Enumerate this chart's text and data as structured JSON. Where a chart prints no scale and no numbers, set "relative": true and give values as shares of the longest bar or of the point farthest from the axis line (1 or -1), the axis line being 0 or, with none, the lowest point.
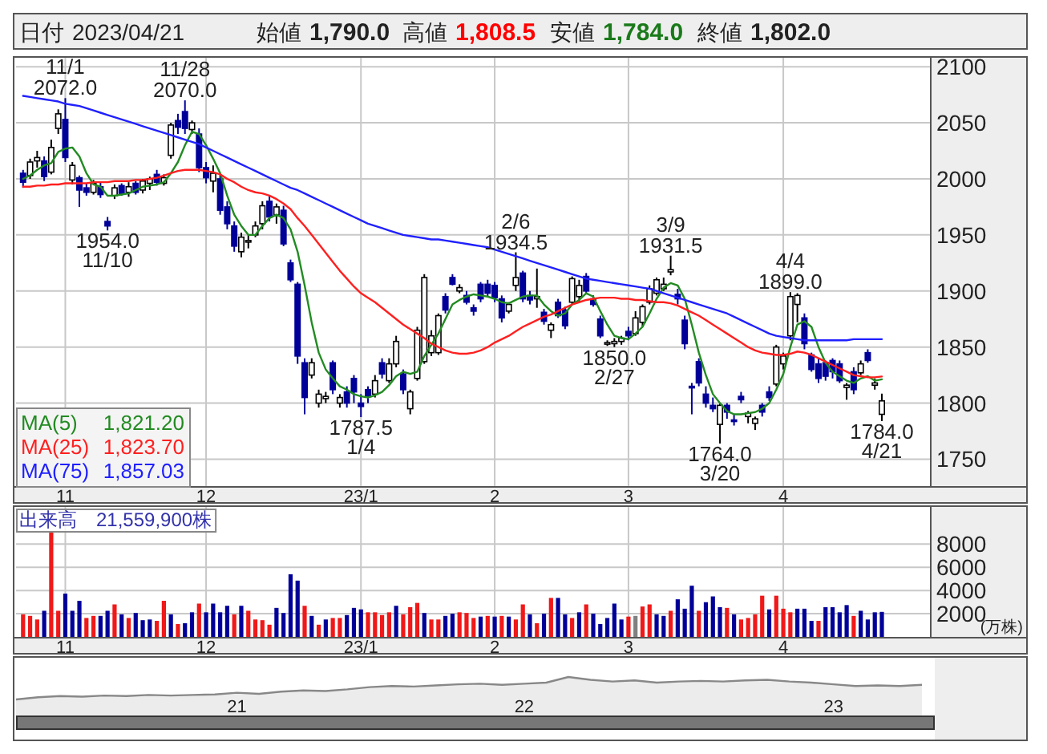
{
  "chart_data": [
    {
      "type": "other",
      "annotations": [
        "日付",
        "2023/04/21",
        "始値",
        "1,790.0",
        "高値",
        "1,808.5",
        "安値",
        "1,784.0",
        "終値",
        "1,802.0"
      ]
    },
    {
      "type": "candlestick",
      "legend": "bottom left",
      "grid": true,
      "ylim": [
        1726,
        2108
      ],
      "yticks": [
        1750,
        1800,
        1850,
        1900,
        1950,
        2000,
        2050,
        2100
      ],
      "categories": [
        null,
        null,
        null,
        null,
        null,
        null,
        "11",
        null,
        null,
        null,
        null,
        null,
        null,
        null,
        null,
        null,
        null,
        null,
        null,
        null,
        null,
        null,
        null,
        null,
        null,
        null,
        "12",
        null,
        null,
        null,
        null,
        null,
        null,
        null,
        null,
        null,
        null,
        null,
        null,
        null,
        null,
        null,
        null,
        null,
        null,
        null,
        null,
        null,
        "23/1",
        null,
        null,
        null,
        null,
        null,
        null,
        null,
        null,
        null,
        null,
        null,
        null,
        null,
        null,
        null,
        null,
        null,
        null,
        "2",
        null,
        null,
        null,
        null,
        null,
        null,
        null,
        null,
        null,
        null,
        null,
        null,
        null,
        null,
        null,
        null,
        null,
        null,
        "3",
        null,
        null,
        null,
        null,
        null,
        null,
        null,
        null,
        null,
        null,
        null,
        null,
        null,
        null,
        null,
        null,
        null,
        null,
        null,
        null,
        null,
        "4",
        null,
        null,
        null,
        null,
        null,
        null,
        null,
        null,
        null,
        null,
        null,
        null,
        null,
        null
      ],
      "ohlc": [
        [
          2005,
          2008,
          1992,
          1997
        ],
        [
          2003,
          2018,
          2000,
          2015
        ],
        [
          2016,
          2025,
          2010,
          2019
        ],
        [
          2016,
          2020,
          1998,
          2002
        ],
        [
          2006,
          2035,
          2004,
          2028
        ],
        [
          2045,
          2062,
          2040,
          2058
        ],
        [
          2053,
          2072,
          2015,
          2019
        ],
        [
          1999,
          2015,
          1995,
          2012
        ],
        [
          2001,
          2003,
          1975,
          1990
        ],
        [
          1992,
          1996,
          1985,
          1988
        ],
        [
          1988,
          1999,
          1986,
          1996
        ],
        [
          1993,
          1997,
          1983,
          1986
        ],
        [
          1962,
          1966,
          1954,
          1958
        ],
        [
          1985,
          1995,
          1982,
          1992
        ],
        [
          1994,
          1996,
          1985,
          1987
        ],
        [
          1988,
          1997,
          1984,
          1993
        ],
        [
          1996,
          1998,
          1986,
          1988
        ],
        [
          1990,
          2000,
          1987,
          1998
        ],
        [
          1996,
          2002,
          1990,
          2000
        ],
        [
          2004,
          2008,
          1994,
          1997
        ],
        [
          1996,
          2004,
          1994,
          2001
        ],
        [
          2021,
          2050,
          2018,
          2048
        ],
        [
          2052,
          2058,
          2040,
          2046
        ],
        [
          2060,
          2070,
          2040,
          2045
        ],
        [
          2044,
          2052,
          2040,
          2050
        ],
        [
          2040,
          2045,
          2006,
          2010
        ],
        [
          2010,
          2015,
          1996,
          2001
        ],
        [
          1998,
          2012,
          1988,
          2005
        ],
        [
          2000,
          2004,
          1968,
          1972
        ],
        [
          1975,
          1980,
          1955,
          1960
        ],
        [
          1958,
          1962,
          1935,
          1940
        ],
        [
          1935,
          1952,
          1930,
          1948
        ],
        [
          1944,
          1950,
          1938,
          1945
        ],
        [
          1950,
          1962,
          1948,
          1958
        ],
        [
          1960,
          1980,
          1955,
          1976
        ],
        [
          1980,
          1985,
          1962,
          1966
        ],
        [
          1968,
          1978,
          1960,
          1975
        ],
        [
          1972,
          1976,
          1940,
          1942
        ],
        [
          1925,
          1928,
          1908,
          1910
        ],
        [
          1906,
          1908,
          1835,
          1842
        ],
        [
          1836,
          1840,
          1790,
          1805
        ],
        [
          1825,
          1840,
          1822,
          1836
        ],
        [
          1800,
          1812,
          1796,
          1808
        ],
        [
          1804,
          1810,
          1800,
          1806
        ],
        [
          1836,
          1838,
          1808,
          1812
        ],
        [
          1800,
          1808,
          1796,
          1805
        ],
        [
          1810,
          1815,
          1796,
          1800
        ],
        [
          1822,
          1825,
          1800,
          1810
        ],
        [
          1800,
          1808,
          1787.5,
          1797
        ],
        [
          1812,
          1815,
          1800,
          1806
        ],
        [
          1808,
          1825,
          1805,
          1820
        ],
        [
          1836,
          1840,
          1822,
          1826
        ],
        [
          1820,
          1840,
          1818,
          1835
        ],
        [
          1835,
          1860,
          1832,
          1855
        ],
        [
          1826,
          1830,
          1808,
          1812
        ],
        [
          1795,
          1812,
          1790,
          1810
        ],
        [
          1822,
          1868,
          1820,
          1865
        ],
        [
          1837,
          1915,
          1835,
          1912
        ],
        [
          1845,
          1865,
          1842,
          1860
        ],
        [
          1845,
          1880,
          1843,
          1878
        ],
        [
          1895,
          1898,
          1880,
          1883
        ],
        [
          1912,
          1915,
          1905,
          1906
        ],
        [
          1900,
          1906,
          1898,
          1903
        ],
        [
          1896,
          1900,
          1888,
          1890
        ],
        [
          1885,
          1888,
          1878,
          1882
        ],
        [
          1906,
          1908,
          1890,
          1893
        ],
        [
          1906,
          1910,
          1895,
          1898
        ],
        [
          1905,
          1908,
          1890,
          1894
        ],
        [
          1893,
          1896,
          1872,
          1876
        ],
        [
          1882,
          1890,
          1880,
          1888
        ],
        [
          1905,
          1934.5,
          1900,
          1912
        ],
        [
          1916,
          1918,
          1890,
          1893
        ],
        [
          1896,
          1900,
          1888,
          1892
        ],
        [
          1893,
          1920,
          1885,
          1895
        ],
        [
          1881,
          1884,
          1870,
          1873
        ],
        [
          1865,
          1872,
          1858,
          1870
        ],
        [
          1890,
          1893,
          1876,
          1878
        ],
        [
          1883,
          1886,
          1866,
          1869
        ],
        [
          1890,
          1913,
          1888,
          1911
        ],
        [
          1895,
          1910,
          1890,
          1905
        ],
        [
          1913,
          1916,
          1898,
          1900
        ],
        [
          1893,
          1896,
          1886,
          1888
        ],
        [
          1875,
          1878,
          1858,
          1860
        ],
        [
          1853,
          1856,
          1851,
          1854
        ],
        [
          1853,
          1858,
          1850,
          1855
        ],
        [
          1855,
          1860,
          1852,
          1858
        ],
        [
          1864,
          1868,
          1856,
          1860
        ],
        [
          1862,
          1882,
          1860,
          1876
        ],
        [
          1872,
          1888,
          1868,
          1886
        ],
        [
          1890,
          1905,
          1888,
          1902
        ],
        [
          1898,
          1912,
          1896,
          1910
        ],
        [
          1902,
          1912,
          1900,
          1906
        ],
        [
          1917,
          1931.5,
          1914,
          1919
        ],
        [
          1897,
          1902,
          1888,
          1893
        ],
        [
          1874,
          1878,
          1848,
          1853
        ],
        [
          1815,
          1818,
          1790,
          1814
        ],
        [
          1837,
          1840,
          1815,
          1818
        ],
        [
          1808,
          1815,
          1796,
          1800
        ],
        [
          1798,
          1805,
          1792,
          1795
        ],
        [
          1781,
          1800,
          1764,
          1798
        ],
        [
          1798,
          1800,
          1786,
          1792
        ],
        [
          1785,
          1790,
          1780,
          1784
        ],
        [
          1806,
          1810,
          1800,
          1803
        ],
        [
          1788,
          1793,
          1782,
          1791
        ],
        [
          1782,
          1788,
          1776,
          1786
        ],
        [
          1798,
          1800,
          1788,
          1792
        ],
        [
          1810,
          1815,
          1802,
          1805
        ],
        [
          1817,
          1852,
          1815,
          1850
        ],
        [
          1835,
          1845,
          1830,
          1842
        ],
        [
          1860,
          1899,
          1856,
          1895
        ],
        [
          1888,
          1898,
          1872,
          1896
        ],
        [
          1876,
          1880,
          1848,
          1853
        ],
        [
          1843,
          1845,
          1828,
          1830
        ],
        [
          1835,
          1840,
          1818,
          1822
        ],
        [
          1836,
          1838,
          1820,
          1824
        ],
        [
          1838,
          1840,
          1822,
          1828
        ],
        [
          1835,
          1838,
          1818,
          1820
        ],
        [
          1814,
          1818,
          1803,
          1816
        ],
        [
          1828,
          1832,
          1808,
          1812
        ],
        [
          1827,
          1838,
          1825,
          1835
        ],
        [
          1845,
          1848,
          1836,
          1838
        ],
        [
          1816,
          1822,
          1812,
          1818
        ],
        [
          1790,
          1808.5,
          1784,
          1802
        ]
      ],
      "series": [
        {
          "type": "line",
          "name": "MA(5)",
          "color": "#228b22",
          "values": [
            2000,
            2003,
            2008,
            2012,
            2014,
            2024,
            2027,
            2028,
            2020,
            2005,
            1995,
            1993,
            1985,
            1985,
            1986,
            1987,
            1990,
            1993,
            1994,
            1995,
            1997,
            2005,
            2015,
            2030,
            2042,
            2040,
            2030,
            2018,
            2005,
            1985,
            1968,
            1958,
            1950,
            1950,
            1958,
            1965,
            1968,
            1965,
            1955,
            1935,
            1905,
            1872,
            1845,
            1830,
            1822,
            1815,
            1812,
            1808,
            1806,
            1805,
            1807,
            1810,
            1816,
            1824,
            1828,
            1826,
            1828,
            1842,
            1852,
            1862,
            1875,
            1888,
            1892,
            1895,
            1897,
            1896,
            1895,
            1893,
            1890,
            1889,
            1892,
            1895,
            1896,
            1896,
            1888,
            1882,
            1878,
            1880,
            1888,
            1892,
            1898,
            1895,
            1882,
            1870,
            1860,
            1858,
            1857,
            1862,
            1868,
            1880,
            1893,
            1903,
            1907,
            1905,
            1893,
            1870,
            1845,
            1825,
            1808,
            1800,
            1793,
            1790,
            1790,
            1791,
            1792,
            1795,
            1800,
            1812,
            1826,
            1850,
            1870,
            1873,
            1868,
            1850,
            1836,
            1828,
            1824,
            1820,
            1818,
            1822,
            1824,
            1820,
            1821.2
          ]
        },
        {
          "type": "line",
          "name": "MA(25)",
          "color": "#ff2020",
          "values": [
            1993,
            1993,
            1994,
            1994,
            1995,
            1995,
            1996,
            1996,
            1996,
            1996,
            1997,
            1997,
            1997,
            1998,
            1998,
            1998,
            1999,
            1999,
            2000,
            2001,
            2003,
            2005,
            2007,
            2008,
            2008,
            2008,
            2007,
            2006,
            2004,
            2000,
            1997,
            1993,
            1990,
            1988,
            1987,
            1985,
            1982,
            1978,
            1973,
            1965,
            1958,
            1950,
            1942,
            1934,
            1926,
            1918,
            1911,
            1904,
            1898,
            1894,
            1890,
            1885,
            1880,
            1875,
            1870,
            1866,
            1862,
            1858,
            1853,
            1850,
            1847,
            1845,
            1844,
            1844,
            1845,
            1847,
            1850,
            1854,
            1857,
            1860,
            1864,
            1868,
            1871,
            1874,
            1877,
            1879,
            1882,
            1885,
            1888,
            1890,
            1892,
            1893,
            1894,
            1894,
            1894,
            1893,
            1893,
            1892,
            1892,
            1891,
            1890,
            1890,
            1889,
            1887,
            1884,
            1881,
            1878,
            1874,
            1870,
            1866,
            1862,
            1858,
            1854,
            1850,
            1847,
            1845,
            1844,
            1843,
            1843,
            1844,
            1846,
            1845,
            1843,
            1840,
            1837,
            1834,
            1831,
            1828,
            1825,
            1824,
            1823,
            1823,
            1823.7
          ]
        },
        {
          "type": "line",
          "name": "MA(75)",
          "color": "#2020ff",
          "values": [
            2074,
            2073,
            2072,
            2071,
            2070,
            2069,
            2067,
            2066,
            2065,
            2063,
            2061,
            2059,
            2057,
            2055,
            2053,
            2051,
            2049,
            2047,
            2045,
            2043,
            2041,
            2039,
            2037,
            2035,
            2033,
            2031,
            2028,
            2025,
            2022,
            2019,
            2016,
            2013,
            2010,
            2007,
            2004,
            2001,
            1998,
            1995,
            1992,
            1990,
            1987,
            1984,
            1981,
            1978,
            1975,
            1972,
            1969,
            1966,
            1963,
            1960,
            1958,
            1956,
            1954,
            1952,
            1950,
            1949,
            1948,
            1947,
            1946,
            1946,
            1945,
            1944,
            1943,
            1942,
            1941,
            1940,
            1939,
            1937,
            1935,
            1933,
            1931,
            1929,
            1927,
            1925,
            1923,
            1921,
            1919,
            1917,
            1915,
            1913,
            1911,
            1910,
            1909,
            1908,
            1907,
            1906,
            1905,
            1904,
            1903,
            1902,
            1900,
            1898,
            1896,
            1894,
            1892,
            1890,
            1888,
            1886,
            1884,
            1882,
            1880,
            1877,
            1874,
            1871,
            1868,
            1865,
            1862,
            1860,
            1859,
            1858,
            1857,
            1856,
            1856,
            1856,
            1856,
            1856,
            1856,
            1856,
            1857,
            1857,
            1857,
            1857,
            1857.03
          ]
        }
      ],
      "annotations": [
        {
          "text": "11/1\n2072.0",
          "y": 2072
        },
        {
          "text": "11/28\n2070.0",
          "y": 2070
        },
        {
          "text": "1954.0\n11/10",
          "y": 1954
        },
        {
          "text": "1787.5\n1/4",
          "y": 1787.5
        },
        {
          "text": "2/6\n1934.5",
          "y": 1934.5
        },
        {
          "text": "1850.0\n2/27",
          "y": 1850
        },
        {
          "text": "3/9\n1931.5",
          "y": 1931.5
        },
        {
          "text": "1764.0\n3/20",
          "y": 1764
        },
        {
          "text": "4/4\n1899.0",
          "y": 1899
        },
        {
          "text": "1784.0\n4/21",
          "y": 1784
        },
        "1,821.20",
        "1,823.70",
        "1,857.03"
      ]
    },
    {
      "type": "bar",
      "title": "出来高　21,559,900株",
      "ylabel": "(万株)",
      "grid": true,
      "ylim": [
        0,
        11200
      ],
      "yticks": [
        2000,
        4000,
        6000,
        8000
      ],
      "categories": [
        null,
        null,
        null,
        null,
        null,
        null,
        "11",
        null,
        null,
        null,
        null,
        null,
        null,
        null,
        null,
        null,
        null,
        null,
        null,
        null,
        null,
        null,
        null,
        null,
        null,
        null,
        "12",
        null,
        null,
        null,
        null,
        null,
        null,
        null,
        null,
        null,
        null,
        null,
        null,
        null,
        null,
        null,
        null,
        null,
        null,
        null,
        null,
        null,
        "23/1",
        null,
        null,
        null,
        null,
        null,
        null,
        null,
        null,
        null,
        null,
        null,
        null,
        null,
        null,
        null,
        null,
        null,
        null,
        "2",
        null,
        null,
        null,
        null,
        null,
        null,
        null,
        null,
        null,
        null,
        null,
        null,
        null,
        null,
        null,
        null,
        null,
        null,
        "3",
        null,
        null,
        null,
        null,
        null,
        null,
        null,
        null,
        null,
        null,
        null,
        null,
        null,
        null,
        null,
        null,
        null,
        null,
        null,
        null,
        null,
        "4",
        null,
        null,
        null,
        null,
        null,
        null,
        null,
        null,
        null,
        null,
        null,
        null,
        null,
        null
      ],
      "values": [
        1940,
        1810,
        1500,
        2250,
        9060,
        2250,
        3730,
        2250,
        3110,
        1630,
        1810,
        1810,
        2250,
        2800,
        1940,
        1630,
        2060,
        1440,
        1500,
        1380,
        3110,
        1940,
        1110,
        1180,
        2120,
        2870,
        2120,
        2870,
        2120,
        2680,
        1940,
        2680,
        2250,
        1500,
        1440,
        1050,
        2500,
        2060,
        5400,
        4850,
        2680,
        1810,
        1050,
        1500,
        1630,
        1630,
        1880,
        2500,
        2370,
        2120,
        2120,
        1880,
        2120,
        2680,
        1940,
        2560,
        2930,
        2060,
        1500,
        1500,
        1810,
        2000,
        2120,
        2060,
        1630,
        1750,
        1810,
        1750,
        1810,
        1750,
        1500,
        2800,
        1940,
        1180,
        2000,
        3360,
        3360,
        1940,
        1630,
        2120,
        2800,
        2000,
        1110,
        1630,
        2870,
        1500,
        1750,
        1810,
        2620,
        2800,
        1940,
        1810,
        2250,
        3240,
        2430,
        4410,
        2250,
        2990,
        3490,
        2560,
        2500,
        1940,
        1500,
        1630,
        1940,
        3550,
        2370,
        3550,
        2430,
        2120,
        2430,
        2430,
        1380,
        1380,
        2560,
        2560,
        2120,
        2740,
        1810,
        2250,
        1500,
        2120,
        2156
      ],
      "colors": [
        "#f01818",
        "#f01818",
        "#f01818",
        "#000099",
        "#f01818",
        "#f01818",
        "#000099",
        "#000099",
        "#000099",
        "#f01818",
        "#f01818",
        "#000099",
        "#000099",
        "#f01818",
        "#000099",
        "#f01818",
        "#000099",
        "#000099",
        "#000099",
        "#f01818",
        "#f01818",
        "#000099",
        "#f01818",
        "#000099",
        "#000099",
        "#f01818",
        "#000099",
        "#000099",
        "#000099",
        "#000099",
        "#f01818",
        "#000099",
        "#f01818",
        "#f01818",
        "#f01818",
        "#f01818",
        "#000099",
        "#000099",
        "#000099",
        "#000099",
        "#f01818",
        "#000099",
        "#f01818",
        "#000099",
        "#f01818",
        "#f01818",
        "#000099",
        "#000099",
        "#000099",
        "#f01818",
        "#f01818",
        "#f01818",
        "#f01818",
        "#000099",
        "#f01818",
        "#f01818",
        "#f01818",
        "#000099",
        "#f01818",
        "#f01818",
        "#000099",
        "#000099",
        "#f01818",
        "#f01818",
        "#f01818",
        "#000099",
        "#f01818",
        "#000099",
        "#f01818",
        "#000099",
        "#f01818",
        "#f01818",
        "#000099",
        "#f01818",
        "#000099",
        "#f01818",
        "#000099",
        "#000099",
        "#f01818",
        "#000099",
        "#f01818",
        "#000099",
        "#000099",
        "#000099",
        "#000099",
        "#000099",
        "#f01818",
        "#808080",
        "#f01818",
        "#f01818",
        "#000099",
        "#000099",
        "#f01818",
        "#000099",
        "#000099",
        "#000099",
        "#f01818",
        "#000099",
        "#000099",
        "#000099",
        "#f01818",
        "#000099",
        "#f01818",
        "#f01818",
        "#f01818",
        "#f01818",
        "#000099",
        "#f01818",
        "#f01818",
        "#f01818",
        "#000099",
        "#000099",
        "#000099",
        "#f01818",
        "#000099",
        "#000099",
        "#000099",
        "#000099",
        "#f01818",
        "#000099",
        "#000099",
        "#000099",
        "#000099"
      ]
    },
    {
      "type": "area",
      "relative": true,
      "categories": [
        null,
        null,
        null,
        null,
        null,
        null,
        null,
        null,
        null,
        null,
        "21",
        null,
        null,
        null,
        null,
        null,
        null,
        null,
        null,
        null,
        null,
        null,
        null,
        "22",
        null,
        null,
        null,
        null,
        null,
        null,
        null,
        null,
        null,
        null,
        null,
        null,
        null,
        "23",
        null,
        null,
        null,
        null
      ],
      "series": [
        {
          "color": "#888888",
          "values": [
            0,
            0.1,
            0.15,
            0.125,
            0.175,
            0.15,
            0.2,
            0.175,
            0.2,
            0.225,
            0.3,
            0.25,
            0.35,
            0.4,
            0.375,
            0.45,
            0.55,
            0.6,
            0.575,
            0.625,
            0.675,
            0.7,
            0.65,
            0.7,
            0.75,
            1,
            0.875,
            0.8,
            0.85,
            0.75,
            0.8,
            0.825,
            0.8,
            0.85,
            0.875,
            0.8,
            0.75,
            0.675,
            0.6,
            0.625,
            0.6,
            0.65
          ]
        }
      ]
    }
  ]
}
